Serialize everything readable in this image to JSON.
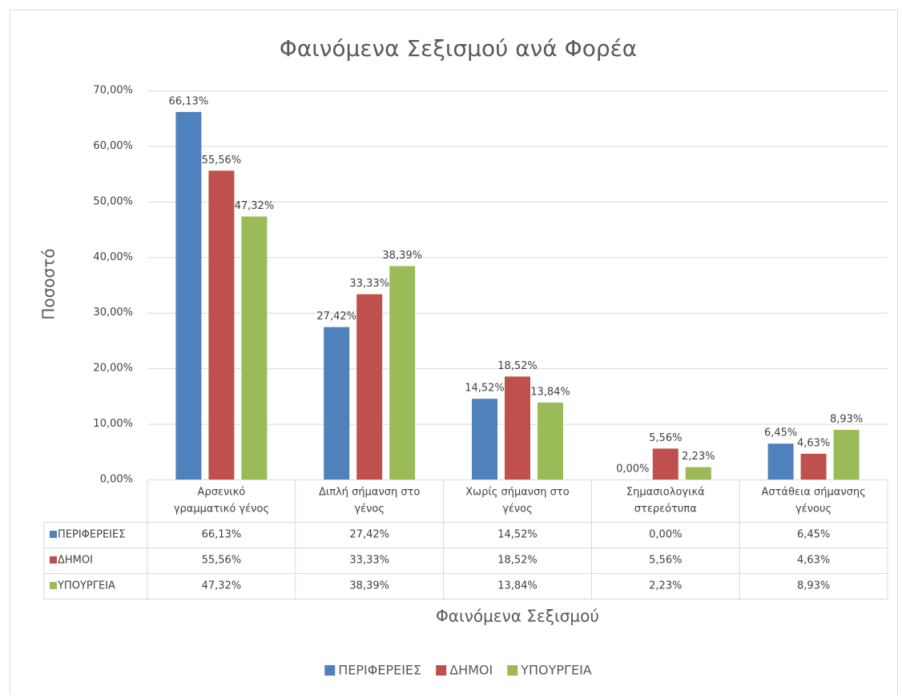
{
  "chart_data": {
    "type": "bar",
    "title": "Φαινόμενα Σεξισμού ανά Φορέα",
    "y_axis_label": "Ποσοστό",
    "x_axis_label": "Φαινόμενα Σεξισμού",
    "categories": [
      [
        "Αρσενικό",
        "γραμματικό γένος"
      ],
      [
        "Διπλή σήμανση στο",
        "γένος"
      ],
      [
        "Χωρίς σήμανση στο",
        "γένος"
      ],
      [
        "Σημασιολογικά",
        "στερεότυπα"
      ],
      [
        "Αστάθεια σήμανσης",
        "γένους"
      ]
    ],
    "series": [
      {
        "name": "ΠΕΡΙΦΕΡΕΙΕΣ",
        "color": "#4f81bd",
        "values": [
          66.13,
          27.42,
          14.52,
          0,
          6.45
        ],
        "value_labels": [
          "66,13%",
          "27,42%",
          "14,52%",
          "0,00%",
          "6,45%"
        ]
      },
      {
        "name": "ΔΗΜΟΙ",
        "color": "#c0504d",
        "values": [
          55.56,
          33.33,
          18.52,
          5.56,
          4.63
        ],
        "value_labels": [
          "55,56%",
          "33,33%",
          "18,52%",
          "5,56%",
          "4,63%"
        ]
      },
      {
        "name": "ΥΠΟΥΡΓΕΙΑ",
        "color": "#9bbb59",
        "values": [
          47.32,
          38.39,
          13.84,
          2.23,
          8.93
        ],
        "value_labels": [
          "47,32%",
          "38,39%",
          "13,84%",
          "2,23%",
          "8,93%"
        ]
      }
    ],
    "ylim": [
      0,
      70
    ],
    "yticks": [
      {
        "value": 0,
        "label": "0,00%"
      },
      {
        "value": 10,
        "label": "10,00%"
      },
      {
        "value": 20,
        "label": "20,00%"
      },
      {
        "value": 30,
        "label": "30,00%"
      },
      {
        "value": 40,
        "label": "40,00%"
      },
      {
        "value": 50,
        "label": "50,00%"
      },
      {
        "value": 60,
        "label": "60,00%"
      },
      {
        "value": 70,
        "label": "70,00%"
      }
    ],
    "grid": true,
    "legend": "bottom"
  }
}
